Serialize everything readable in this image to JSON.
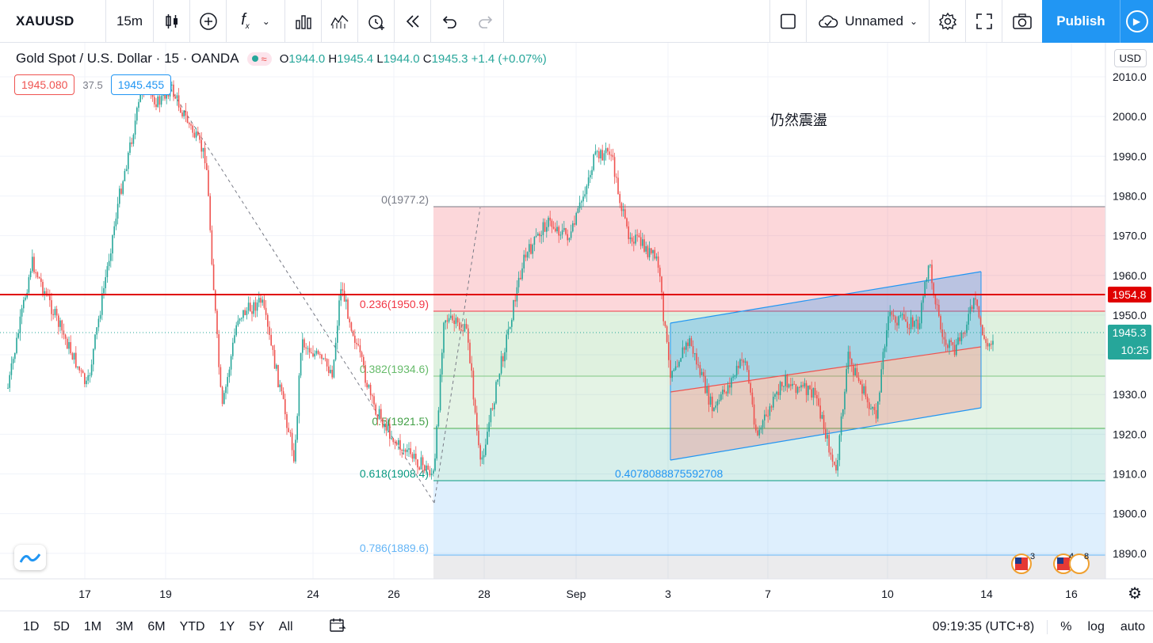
{
  "toolbar": {
    "symbol": "XAUUSD",
    "interval": "15m",
    "layout_name": "Unnamed",
    "publish_label": "Publish"
  },
  "legend": {
    "title": "Gold Spot / U.S. Dollar · 15 · OANDA",
    "o_label": "O",
    "o": "1944.0",
    "h_label": "H",
    "h": "1945.4",
    "l_label": "L",
    "l": "1944.0",
    "c_label": "C",
    "c": "1945.3",
    "change": "+1.4 (+0.07%)",
    "bid": "1945.080",
    "spread": "37.5",
    "ask": "1945.455"
  },
  "currency_button": "USD",
  "annotation_text": "仍然震盪",
  "price_axis": {
    "ticks": [
      "2010.0",
      "2000.0",
      "1990.0",
      "1980.0",
      "1970.0",
      "1960.0",
      "1950.0",
      "1940.0",
      "1930.0",
      "1920.0",
      "1910.0",
      "1900.0",
      "1890.0"
    ],
    "hline_label": "1954.8",
    "last_price": "1945.3",
    "countdown": "10:25"
  },
  "time_axis": {
    "ticks": [
      "17",
      "19",
      "24",
      "26",
      "28",
      "Sep",
      "3",
      "7",
      "10",
      "14",
      "16"
    ]
  },
  "fib": {
    "levels": [
      {
        "label": "0(1977.2)"
      },
      {
        "label": "0.236(1950.9)"
      },
      {
        "label": "0.382(1934.6)"
      },
      {
        "label": "0.5(1921.5)"
      },
      {
        "label": "0.618(1908.4)"
      },
      {
        "label": "0.786(1889.6)"
      }
    ]
  },
  "channel_label": "0.4078088875592708",
  "events": {
    "badge1": "3",
    "badge2": "4",
    "badge3": "8"
  },
  "bottombar": {
    "ranges": [
      "1D",
      "5D",
      "1M",
      "3M",
      "6M",
      "YTD",
      "1Y",
      "5Y",
      "All"
    ],
    "clock": "09:19:35 (UTC+8)",
    "percent": "%",
    "log": "log",
    "auto": "auto"
  },
  "colors": {
    "accent": "#2196f3",
    "up": "#26a69a",
    "down": "#ef5350"
  }
}
